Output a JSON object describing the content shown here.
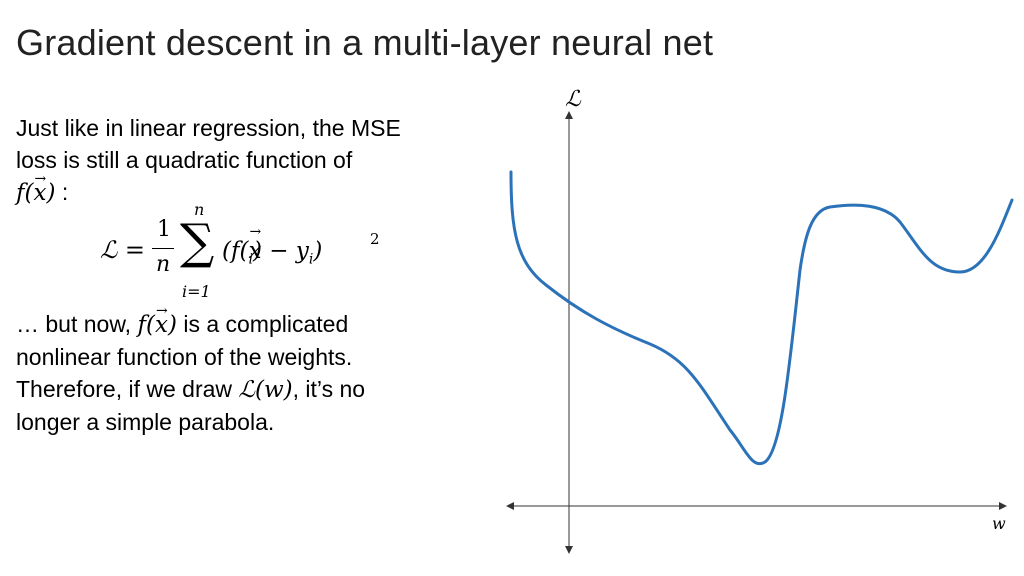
{
  "slide": {
    "title": "Gradient descent in a multi-layer neural net",
    "para1_line1": "Just like in linear regression, the MSE",
    "para1_line2": "loss is still a quadratic function of",
    "f_of_x": "f(x)",
    "colon": " :",
    "formula": {
      "lhs": "ℒ =",
      "frac_num": "1",
      "frac_den": "n",
      "sum_upper": "n",
      "sum_sign": "∑",
      "sum_lower": "i=1",
      "term": "(f(xᵢ) − yᵢ)",
      "exp": "2"
    },
    "para2_line1_pre": "… but now, ",
    "para2_line1_post": " is a complicated",
    "para2_line2": "nonlinear function of the weights.",
    "para2_line3_pre": "Therefore, if we draw ",
    "L_of_w": "ℒ(w)",
    "para2_line3_post": ", it’s no",
    "para2_line4": "longer a simple parabola."
  },
  "chart_data": {
    "type": "line",
    "xlabel": "w",
    "ylabel": "ℒ",
    "axes": "arrows, no ticks, no grid",
    "line_color": "#2b72b8",
    "shape": "decreasing from upper-left, deep minimum, sharp rise to a local maximum, local minimum, rising to the right"
  },
  "colors": {
    "curve": "#2b72b8",
    "axis": "#333333",
    "title": "#222222"
  }
}
